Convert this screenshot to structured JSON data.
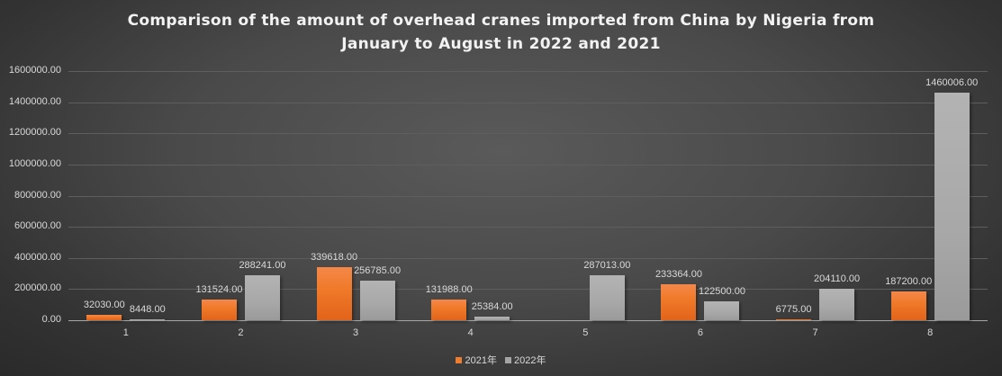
{
  "chart_data": {
    "type": "bar",
    "title": "Comparison of the amount of overhead cranes imported from China by Nigeria from January to August in 2022 and 2021",
    "title_lines": [
      "Comparison of the amount of overhead cranes imported from China by Nigeria from",
      "January to August in 2022 and 2021"
    ],
    "xlabel": "",
    "ylabel": "",
    "categories": [
      "1",
      "2",
      "3",
      "4",
      "5",
      "6",
      "7",
      "8"
    ],
    "series": [
      {
        "name": "2021年",
        "color": "#ed7d31",
        "values": [
          32030.0,
          131524.0,
          339618.0,
          131988.0,
          null,
          233364.0,
          6775.0,
          187200.0
        ],
        "labels": [
          "32030.00",
          "131524.00",
          "339618.00",
          "131988.00",
          "",
          "233364.00",
          "6775.00",
          "187200.00"
        ]
      },
      {
        "name": "2022年",
        "color": "#a5a5a5",
        "values": [
          8448.0,
          288241.0,
          256785.0,
          25384.0,
          287013.0,
          122500.0,
          204110.0,
          1460006.0
        ],
        "labels": [
          "8448.00",
          "288241.00",
          "256785.00",
          "25384.00",
          "287013.00",
          "122500.00",
          "204110.00",
          "1460006.00"
        ]
      }
    ],
    "ylim": [
      0,
      1600000
    ],
    "yticks": [
      "0.00",
      "200000.00",
      "400000.00",
      "600000.00",
      "800000.00",
      "1000000.00",
      "1200000.00",
      "1400000.00",
      "1600000.00"
    ],
    "grid": true,
    "legend_position": "bottom"
  }
}
